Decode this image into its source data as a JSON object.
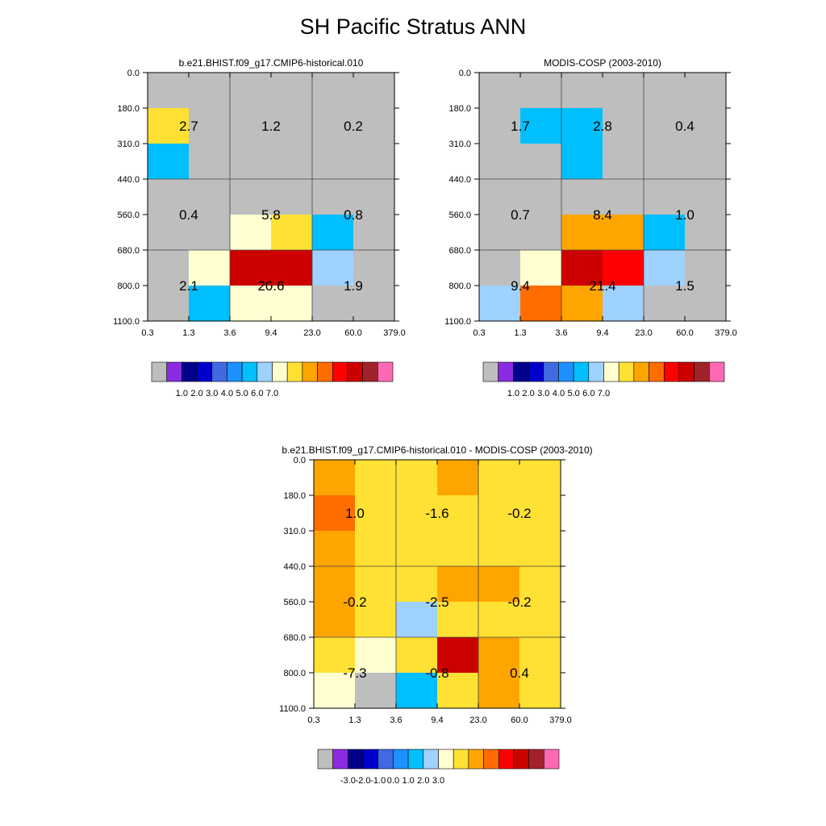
{
  "figure_title": "SH Pacific Stratus ANN",
  "chart_data": [
    {
      "type": "heatmap",
      "title": "b.e21.BHIST.f09_g17.CMIP6-historical.010",
      "x_ticks": [
        "0.3",
        "1.3",
        "3.6",
        "9.4",
        "23.0",
        "60.0",
        "379.0"
      ],
      "y_ticks": [
        "0.0",
        "180.0",
        "310.0",
        "440.0",
        "560.0",
        "680.0",
        "800.0",
        "1100.0"
      ],
      "values": [
        [
          null,
          null,
          null,
          null,
          null,
          null
        ],
        [
          3.2,
          null,
          null,
          null,
          null,
          null
        ],
        [
          0.9,
          null,
          null,
          null,
          null,
          null
        ],
        [
          null,
          null,
          null,
          null,
          null,
          null
        ],
        [
          null,
          null,
          2.6,
          3.8,
          0.9,
          null
        ],
        [
          null,
          2.2,
          7.5,
          7.5,
          1.8,
          null
        ],
        [
          null,
          0.9,
          2.2,
          2.2,
          null,
          null
        ]
      ],
      "group_labels": [
        [
          "2.7",
          "1.2",
          "0.2"
        ],
        [
          "0.4",
          "5.8",
          "0.8"
        ],
        [
          "2.1",
          "20.6",
          "1.9"
        ]
      ],
      "colorbar": {
        "colors": [
          "#bebebe",
          "#8a2be2",
          "#00008b",
          "#0000cd",
          "#4169e1",
          "#1e90ff",
          "#00bfff",
          "#a0d2ff",
          "#ffffd1",
          "#ffe134",
          "#ffa500",
          "#ff6d00",
          "#ff0000",
          "#cd0000",
          "#a0222a",
          "#ff69b4"
        ],
        "tick_labels": [
          "1.0",
          "2.0",
          "3.0",
          "4.0",
          "5.0",
          "6.0",
          "7.0"
        ]
      }
    },
    {
      "type": "heatmap",
      "title": "MODIS-COSP (2003-2010)",
      "x_ticks": [
        "0.3",
        "1.3",
        "3.6",
        "9.4",
        "23.0",
        "60.0",
        "379.0"
      ],
      "y_ticks": [
        "0.0",
        "180.0",
        "310.0",
        "440.0",
        "560.0",
        "680.0",
        "800.0",
        "1100.0"
      ],
      "values": [
        [
          null,
          null,
          null,
          null,
          null,
          null
        ],
        [
          null,
          0.9,
          0.9,
          null,
          null,
          null
        ],
        [
          null,
          null,
          0.9,
          null,
          null,
          null
        ],
        [
          null,
          null,
          null,
          null,
          null,
          null
        ],
        [
          null,
          null,
          4.2,
          4.2,
          0.9,
          null
        ],
        [
          null,
          2.7,
          7.8,
          6.2,
          1.7,
          null
        ],
        [
          1.7,
          5.7,
          4.6,
          1.7,
          null,
          null
        ]
      ],
      "group_labels": [
        [
          "1.7",
          "2.8",
          "0.4"
        ],
        [
          "0.7",
          "8.4",
          "1.0"
        ],
        [
          "9.4",
          "21.4",
          "1.5"
        ]
      ],
      "colorbar": {
        "colors": [
          "#bebebe",
          "#8a2be2",
          "#00008b",
          "#0000cd",
          "#4169e1",
          "#1e90ff",
          "#00bfff",
          "#a0d2ff",
          "#ffffd1",
          "#ffe134",
          "#ffa500",
          "#ff6d00",
          "#ff0000",
          "#cd0000",
          "#a0222a",
          "#ff69b4"
        ],
        "tick_labels": [
          "1.0",
          "2.0",
          "3.0",
          "4.0",
          "5.0",
          "6.0",
          "7.0"
        ]
      }
    },
    {
      "type": "heatmap",
      "title": "b.e21.BHIST.f09_g17.CMIP6-historical.010 - MODIS-COSP (2003-2010)",
      "x_ticks": [
        "0.3",
        "1.3",
        "3.6",
        "9.4",
        "23.0",
        "60.0",
        "379.0"
      ],
      "y_ticks": [
        "0.0",
        "180.0",
        "310.0",
        "440.0",
        "560.0",
        "680.0",
        "800.0",
        "1100.0"
      ],
      "values": [
        [
          0.2,
          -0.3,
          -0.3,
          0.2,
          -0.3,
          -0.3
        ],
        [
          1.3,
          -0.3,
          -0.8,
          -0.3,
          -0.3,
          -0.3
        ],
        [
          0.8,
          -0.3,
          -0.8,
          -0.3,
          -0.3,
          -0.3
        ],
        [
          0.2,
          -0.3,
          -0.3,
          0.2,
          0.2,
          -0.3
        ],
        [
          0.2,
          -0.3,
          -2.2,
          -0.8,
          -0.3,
          -0.3
        ],
        [
          -0.3,
          -1.3,
          -0.8,
          3.8,
          0.2,
          -0.3
        ],
        [
          -1.3,
          null,
          -3.4,
          -0.3,
          0.2,
          -0.3
        ]
      ],
      "group_labels": [
        [
          "1.0",
          "-1.6",
          "-0.2"
        ],
        [
          "-0.2",
          "-2.5",
          "-0.2"
        ],
        [
          "-7.3",
          "-0.8",
          "0.4"
        ]
      ],
      "colorbar": {
        "colors": [
          "#bebebe",
          "#8a2be2",
          "#00008b",
          "#0000cd",
          "#4169e1",
          "#1e90ff",
          "#00bfff",
          "#a0d2ff",
          "#ffffd1",
          "#ffe134",
          "#ffa500",
          "#ff6d00",
          "#ff0000",
          "#cd0000",
          "#a0222a",
          "#ff69b4"
        ],
        "tick_labels": [
          "-3.0",
          "-2.0",
          "-1.0",
          "0.0",
          "1.0",
          "2.0",
          "3.0"
        ]
      }
    }
  ]
}
